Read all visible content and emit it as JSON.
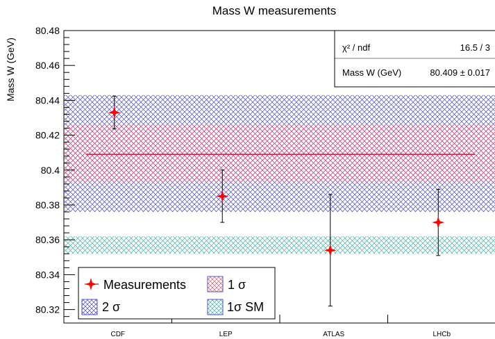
{
  "chart_data": {
    "type": "scatter",
    "title": "Mass W measurements",
    "xlabel": "",
    "ylabel": "Mass W (GeV)",
    "categories": [
      "CDF",
      "LEP",
      "ATLAS",
      "LHCb"
    ],
    "ylim": [
      80.31,
      80.48
    ],
    "yticks": [
      "80.32",
      "80.34",
      "80.36",
      "80.38",
      "80.4",
      "80.42",
      "80.44",
      "80.46",
      "80.48"
    ],
    "grid": false,
    "series": [
      {
        "name": "Measurements",
        "color": "#ff0000",
        "marker": "four-point-star",
        "values": [
          80.433,
          80.385,
          80.354,
          80.37
        ],
        "errors": [
          0.0094,
          0.015,
          0.032,
          0.019
        ]
      }
    ],
    "fit": {
      "value": 80.409,
      "color": "#e0204a"
    },
    "bands": [
      {
        "name": "2 σ",
        "low": 80.376,
        "high": 80.443,
        "color": "#5050c8"
      },
      {
        "name": "1 σ",
        "low": 80.393,
        "high": 80.426,
        "color": "#e05a6a"
      },
      {
        "name": "1σ SM",
        "low": 80.352,
        "high": 80.362,
        "color": "#48b0a0"
      }
    ],
    "stats": {
      "row1_label": "χ² / ndf",
      "row1_value": "16.5 / 3",
      "row2_label": "Mass W (GeV)",
      "row2_value": "80.409 ± 0.017"
    },
    "legend": {
      "placement": "bottom-left",
      "entries": [
        "Measurements",
        "1 σ",
        "2 σ",
        "1σ SM"
      ]
    }
  }
}
